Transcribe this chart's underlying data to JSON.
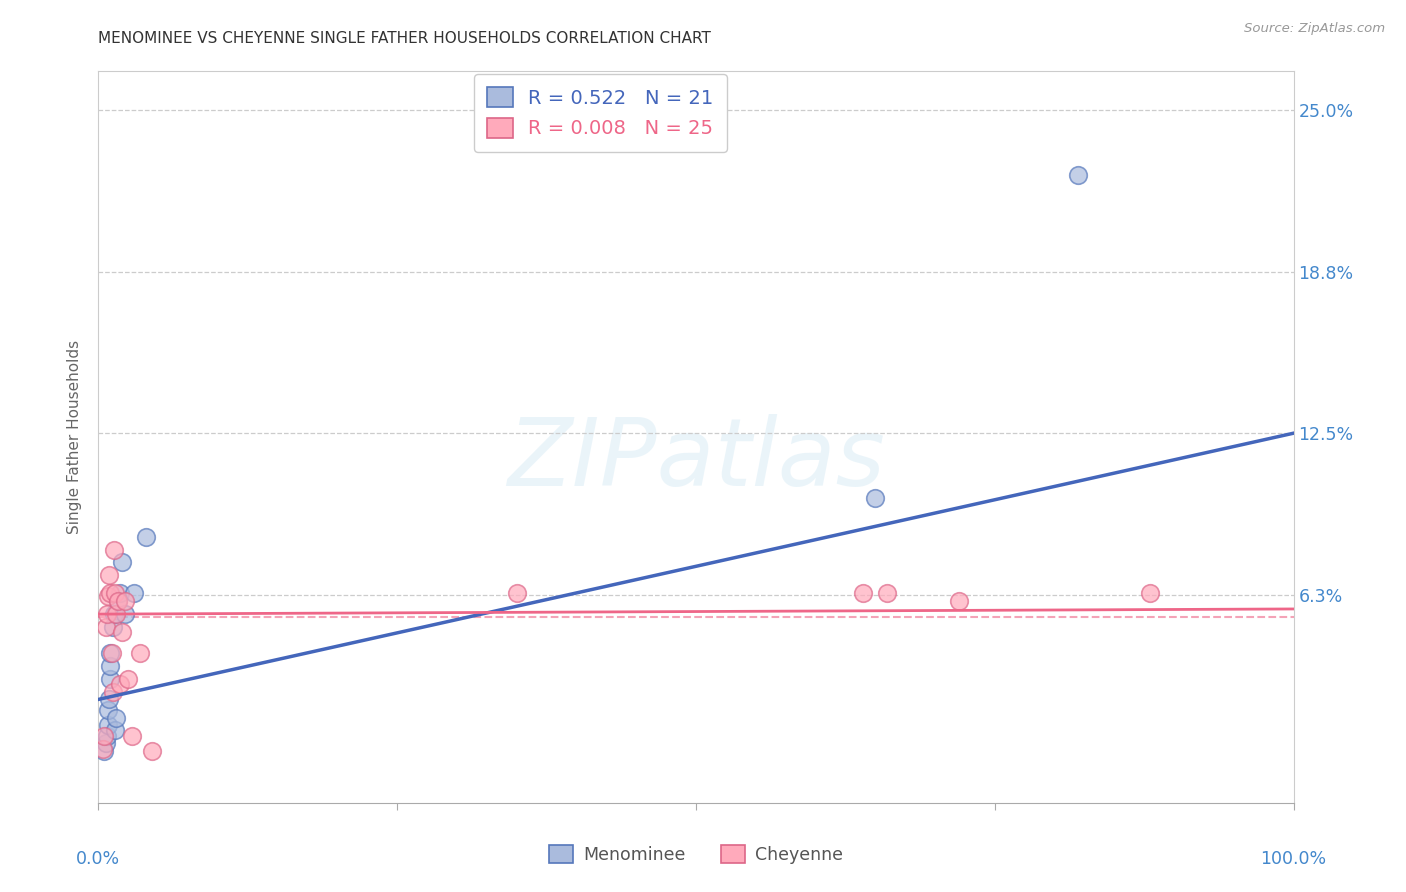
{
  "title": "MENOMINEE VS CHEYENNE SINGLE FATHER HOUSEHOLDS CORRELATION CHART",
  "source": "Source: ZipAtlas.com",
  "ylabel": "Single Father Households",
  "xlim": [
    0.0,
    1.0
  ],
  "ylim": [
    -0.018,
    0.265
  ],
  "watermark": "ZIPatlas",
  "blue_fill": "#AABBDD",
  "blue_edge": "#5577BB",
  "pink_fill": "#FFAABB",
  "pink_edge": "#DD6688",
  "blue_line": "#4466BB",
  "pink_line": "#EE6688",
  "grid_color": "#CCCCCC",
  "bg_color": "#FFFFFF",
  "title_color": "#333333",
  "source_color": "#999999",
  "ylabel_color": "#666666",
  "tick_color": "#4488CC",
  "ytick_vals": [
    0.0,
    0.0625,
    0.125,
    0.1875,
    0.25
  ],
  "ytick_labels": [
    "",
    "6.3%",
    "12.5%",
    "18.8%",
    "25.0%"
  ],
  "menominee_x": [
    0.005,
    0.006,
    0.007,
    0.008,
    0.008,
    0.009,
    0.01,
    0.01,
    0.01,
    0.012,
    0.013,
    0.014,
    0.015,
    0.016,
    0.018,
    0.02,
    0.022,
    0.03,
    0.04,
    0.65,
    0.82
  ],
  "menominee_y": [
    0.002,
    0.005,
    0.008,
    0.012,
    0.018,
    0.022,
    0.03,
    0.035,
    0.04,
    0.05,
    0.055,
    0.01,
    0.015,
    0.06,
    0.063,
    0.075,
    0.055,
    0.063,
    0.085,
    0.1,
    0.225
  ],
  "cheyenne_x": [
    0.004,
    0.005,
    0.006,
    0.007,
    0.008,
    0.009,
    0.01,
    0.011,
    0.012,
    0.013,
    0.014,
    0.015,
    0.016,
    0.018,
    0.02,
    0.022,
    0.025,
    0.028,
    0.035,
    0.045,
    0.35,
    0.64,
    0.66,
    0.72,
    0.88
  ],
  "cheyenne_y": [
    0.003,
    0.008,
    0.05,
    0.055,
    0.062,
    0.07,
    0.063,
    0.04,
    0.025,
    0.08,
    0.063,
    0.055,
    0.06,
    0.028,
    0.048,
    0.06,
    0.03,
    0.008,
    0.04,
    0.002,
    0.063,
    0.063,
    0.063,
    0.06,
    0.063
  ],
  "men_trend": [
    0.0,
    1.0,
    0.022,
    0.125
  ],
  "chey_trend": [
    0.0,
    1.0,
    0.055,
    0.057
  ],
  "chey_mean": 0.054,
  "legend1_text": "R = 0.522   N = 21",
  "legend2_text": "R = 0.008   N = 25"
}
